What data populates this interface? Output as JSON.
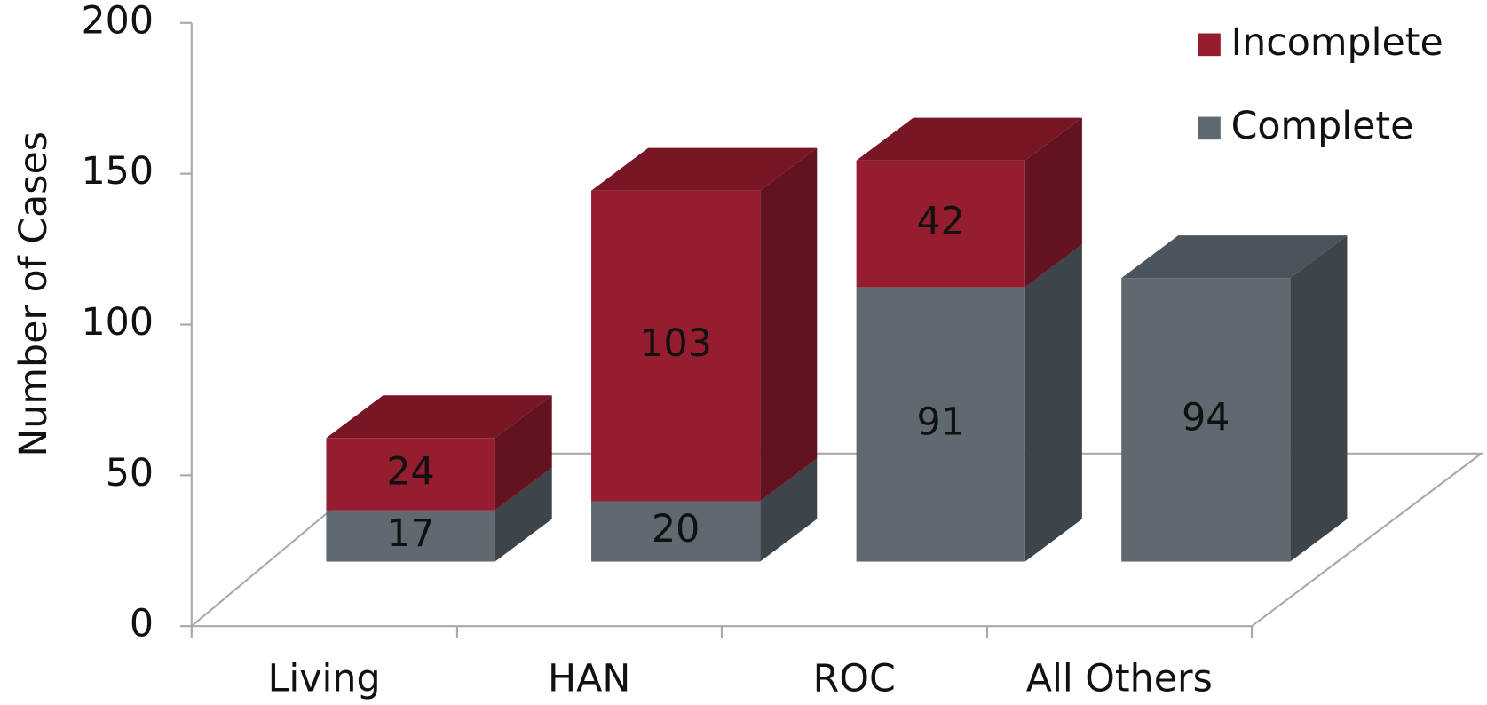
{
  "chart_data": {
    "type": "bar3d_stacked",
    "y_label": "Number of Cases",
    "categories": [
      "Living",
      "HAN",
      "ROC",
      "All Others"
    ],
    "series": [
      {
        "name": "Complete",
        "color": "#5e6970",
        "values": [
          17,
          20,
          91,
          94
        ]
      },
      {
        "name": "Incomplete",
        "color": "#961c30",
        "values": [
          24,
          103,
          42,
          null
        ]
      }
    ],
    "ylim": [
      0,
      200
    ],
    "yticks": [
      0,
      50,
      100,
      150,
      200
    ],
    "legend": "top-right"
  }
}
